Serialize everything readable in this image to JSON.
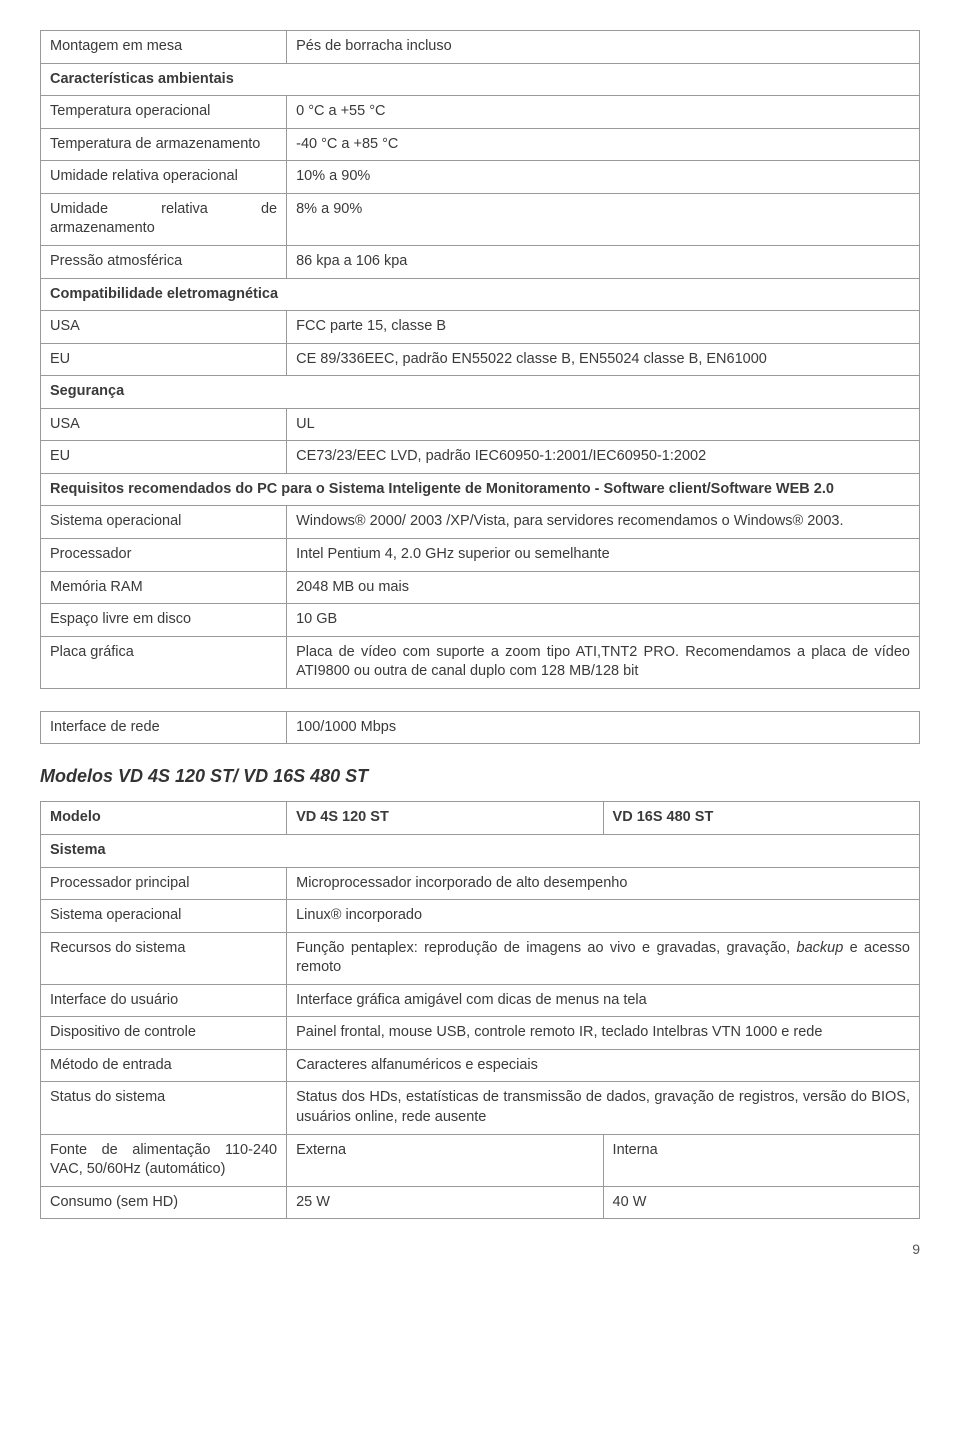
{
  "table1": {
    "rows": [
      {
        "c1": "Montagem em mesa",
        "c2": "Pés de borracha incluso",
        "head": false
      },
      {
        "c1": "Características ambientais",
        "c2": "",
        "head": true,
        "span": true
      },
      {
        "c1": "Temperatura operacional",
        "c2": "0 °C a +55 °C",
        "head": false
      },
      {
        "c1": "Temperatura de armazenamento",
        "c2": "-40 °C a +85 °C",
        "head": false
      },
      {
        "c1": "Umidade relativa operacional",
        "c2": "10% a 90%",
        "head": false
      },
      {
        "c1": "Umidade relativa de armazenamento",
        "c2": "8% a 90%",
        "head": false
      },
      {
        "c1": "Pressão atmosférica",
        "c2": "86 kpa a 106 kpa",
        "head": false
      },
      {
        "c1": "Compatibilidade eletromagnética",
        "c2": "",
        "head": true,
        "span": true
      },
      {
        "c1": "USA",
        "c2": "FCC parte 15, classe B",
        "head": false
      },
      {
        "c1": "EU",
        "c2": "CE 89/336EEC, padrão EN55022 classe B, EN55024 classe B, EN61000",
        "head": false
      },
      {
        "c1": "Segurança",
        "c2": "",
        "head": true,
        "span": true
      },
      {
        "c1": "USA",
        "c2": "UL",
        "head": false
      },
      {
        "c1": "EU",
        "c2": "CE73/23/EEC LVD, padrão IEC60950-1:2001/IEC60950-1:2002",
        "head": false
      },
      {
        "c1": "Requisitos recomendados do PC para o Sistema Inteligente de Monitoramento - Software client/Software WEB 2.0",
        "c2": "",
        "head": true,
        "span": true
      },
      {
        "c1": "Sistema operacional",
        "c2": "Windows® 2000/ 2003 /XP/Vista, para servidores recomendamos o Windows® 2003.",
        "head": false
      },
      {
        "c1": "Processador",
        "c2": "Intel Pentium 4, 2.0 GHz superior ou semelhante",
        "head": false
      },
      {
        "c1": "Memória RAM",
        "c2": "2048 MB ou mais",
        "head": false
      },
      {
        "c1": "Espaço livre em disco",
        "c2": "10 GB",
        "head": false
      },
      {
        "c1": "Placa gráfica",
        "c2": "Placa de vídeo com suporte a zoom tipo ATI,TNT2 PRO. Recomendamos a placa de vídeo ATI9800 ou outra de canal duplo com 128 MB/128 bit",
        "head": false
      }
    ]
  },
  "table_interface": {
    "c1": "Interface de rede",
    "c2": "100/1000 Mbps"
  },
  "model_heading": "Modelos VD 4S 120 ST/ VD 16S 480 ST",
  "table2": {
    "rows": [
      {
        "c1": "Modelo",
        "c2": "VD 4S 120 ST",
        "c3": "VD 16S 480  ST",
        "head": true,
        "cols": 3
      },
      {
        "c1": "Sistema",
        "head": true,
        "span": true
      },
      {
        "c1": "Processador principal",
        "c2": "Microprocessador incorporado de alto desempenho",
        "cols": 2
      },
      {
        "c1": "Sistema operacional",
        "c2": "Linux® incorporado",
        "cols": 2
      },
      {
        "c1": "Recursos do sistema",
        "c2": "Função pentaplex: reprodução de imagens ao vivo e gravadas, gravação, backup e acesso remoto",
        "cols": 2,
        "italicWord": "backup"
      },
      {
        "c1": "Interface do usuário",
        "c2": "Interface gráfica amigável com dicas de menus na tela",
        "cols": 2
      },
      {
        "c1": "Dispositivo de controle",
        "c2": "Painel frontal, mouse USB, controle remoto IR, teclado Intelbras VTN 1000 e rede",
        "cols": 2
      },
      {
        "c1": "Método de entrada",
        "c2": "Caracteres alfanuméricos e especiais",
        "cols": 2
      },
      {
        "c1": "Status do sistema",
        "c2": "Status dos HDs, estatísticas de transmissão de dados, gravação de registros, versão do BIOS, usuários online, rede ausente",
        "cols": 2
      },
      {
        "c1": "Fonte de alimentação 110-240 VAC, 50/60Hz (automático)",
        "c2": "Externa",
        "c3": "Interna",
        "cols": 3
      },
      {
        "c1": "Consumo (sem HD)",
        "c2": "25 W",
        "c3": "40 W",
        "cols": 3
      }
    ]
  },
  "page_number": "9"
}
